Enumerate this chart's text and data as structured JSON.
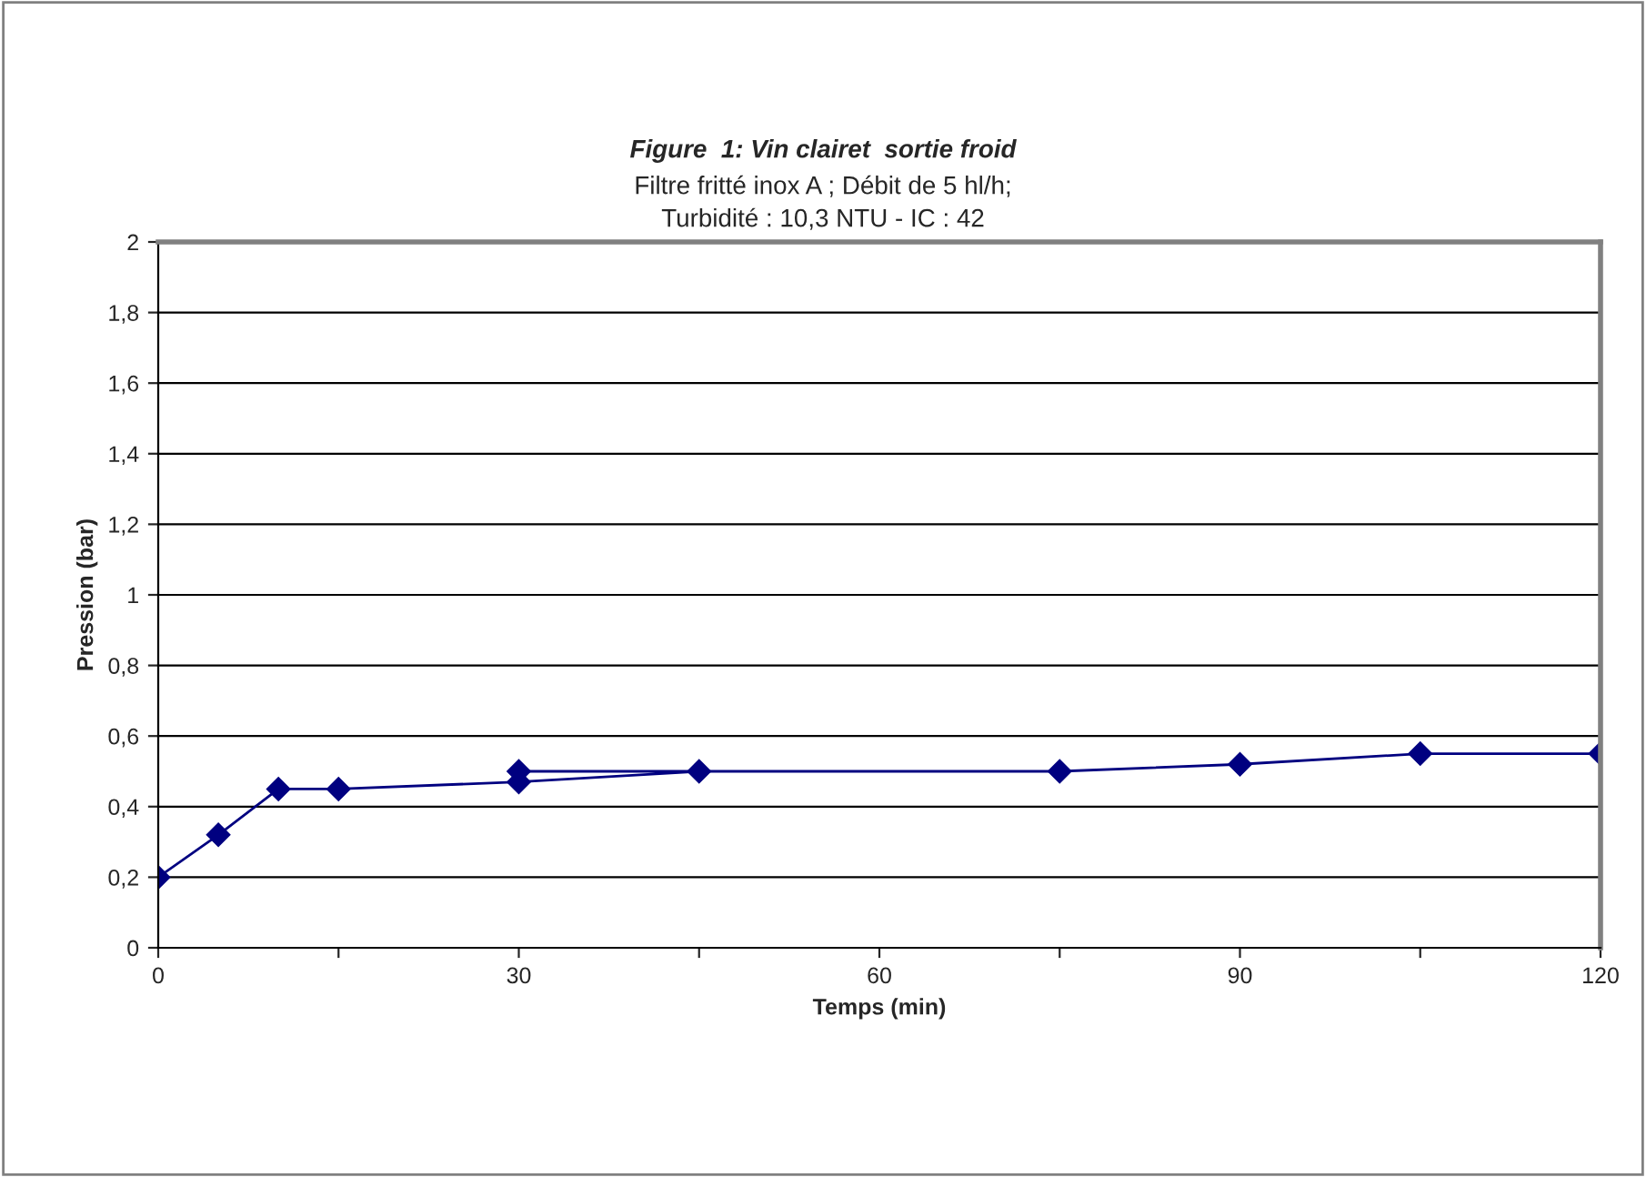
{
  "chart_data": {
    "type": "line",
    "title": "Figure  1: Vin clairet  sortie froid",
    "subtitle": "Filtre fritté inox A ; Débit de 5 hl/h;\nTurbidité : 10,3 NTU - IC : 42",
    "xlabel": "Temps (min)",
    "ylabel": "Pression (bar)",
    "x": [
      0,
      5,
      10,
      15,
      30,
      45,
      30,
      75,
      90,
      105,
      120
    ],
    "series": [
      {
        "color": "#000080",
        "values": [
          0.2,
          0.32,
          0.45,
          0.45,
          0.47,
          0.5,
          0.5,
          0.5,
          0.52,
          0.55,
          0.55
        ]
      }
    ],
    "xlim": [
      0,
      120
    ],
    "xticks": [
      0,
      {
        "value": 15,
        "label": null
      },
      30,
      {
        "value": 45,
        "label": null
      },
      60,
      {
        "value": 75,
        "label": null
      },
      90,
      {
        "value": 105,
        "label": null
      },
      120
    ],
    "ylim": [
      0,
      2
    ],
    "yticks": [
      0,
      {
        "value": 0.2,
        "label": "0,2"
      },
      {
        "value": 0.4,
        "label": "0,4"
      },
      {
        "value": 0.6,
        "label": "0,6"
      },
      {
        "value": 0.8,
        "label": "0,8"
      },
      1,
      {
        "value": 1.2,
        "label": "1,2"
      },
      {
        "value": 1.4,
        "label": "1,4"
      },
      {
        "value": 1.6,
        "label": "1,6"
      },
      {
        "value": 1.8,
        "label": "1,8"
      },
      2
    ],
    "grid": "y",
    "marker": "diamond",
    "line_style": "solid",
    "legend": false
  }
}
